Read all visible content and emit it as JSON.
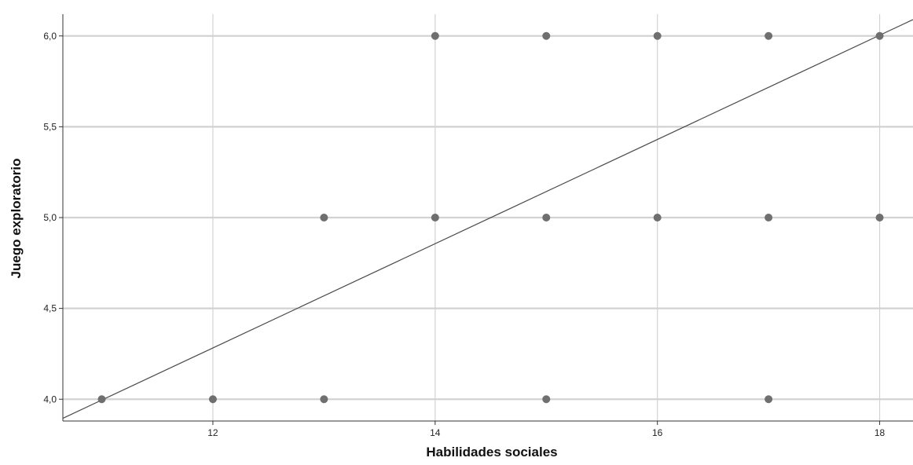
{
  "chart_data": {
    "type": "scatter",
    "title": "",
    "xlabel": "Habilidades sociales",
    "ylabel": "Juego exploratorio",
    "xlim": [
      10.65,
      18.3
    ],
    "ylim": [
      3.88,
      6.12
    ],
    "x_ticks": [
      12,
      14,
      16,
      18
    ],
    "x_tick_labels": [
      "12",
      "14",
      "16",
      "18"
    ],
    "y_ticks": [
      4.0,
      4.5,
      5.0,
      5.5,
      6.0
    ],
    "y_tick_labels": [
      "4,0",
      "4,5",
      "5,0",
      "5,5",
      "6,0"
    ],
    "grid": true,
    "points": [
      {
        "x": 11,
        "y": 4.0
      },
      {
        "x": 12,
        "y": 4.0
      },
      {
        "x": 13,
        "y": 4.0
      },
      {
        "x": 15,
        "y": 4.0
      },
      {
        "x": 17,
        "y": 4.0
      },
      {
        "x": 13,
        "y": 5.0
      },
      {
        "x": 14,
        "y": 5.0
      },
      {
        "x": 15,
        "y": 5.0
      },
      {
        "x": 16,
        "y": 5.0
      },
      {
        "x": 17,
        "y": 5.0
      },
      {
        "x": 18,
        "y": 5.0
      },
      {
        "x": 14,
        "y": 6.0
      },
      {
        "x": 15,
        "y": 6.0
      },
      {
        "x": 16,
        "y": 6.0
      },
      {
        "x": 17,
        "y": 6.0
      },
      {
        "x": 18,
        "y": 6.0
      }
    ],
    "fit_line": {
      "type": "linear",
      "from": {
        "x": 10.65,
        "y": 3.895
      },
      "to": {
        "x": 18.3,
        "y": 6.09
      }
    },
    "colors": {
      "points": "#6f6f6f",
      "fit_line": "#4a4a4a",
      "grid": "#d2d2d2",
      "axis": "#333333"
    }
  }
}
